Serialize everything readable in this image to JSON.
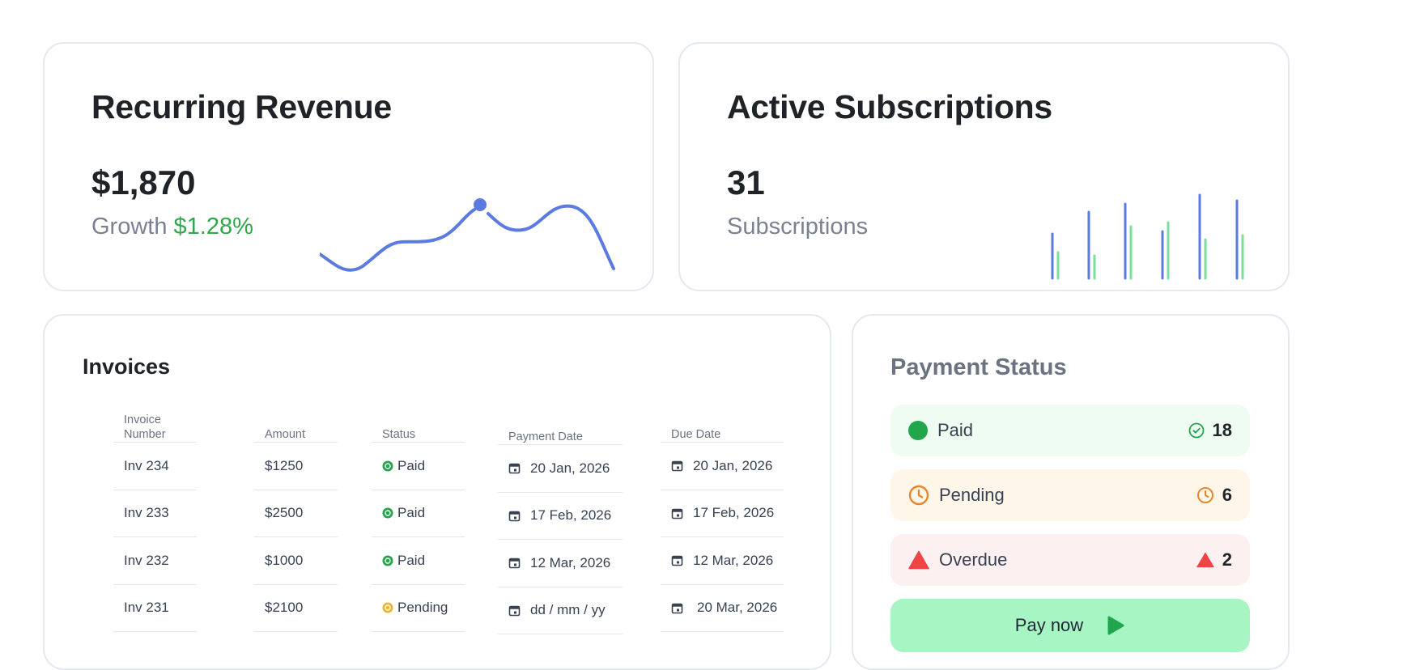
{
  "revenue": {
    "title": "Recurring Revenue",
    "value": "$1,870",
    "growth_label": "Growth",
    "growth_value": "$1.28%"
  },
  "subscriptions": {
    "title": "Active Subscriptions",
    "value": "31",
    "label": "Subscriptions"
  },
  "invoices": {
    "title": "Invoices",
    "headers": {
      "number": "Invoice Number",
      "amount": "Amount",
      "status": "Status",
      "payment_date": "Payment Date",
      "due_date": "Due Date"
    },
    "rows": [
      {
        "number": "Inv 234",
        "amount": "$1250",
        "status": "Paid",
        "payment_date": "20 Jan, 2026",
        "due_date": "20 Jan, 2026"
      },
      {
        "number": "Inv 233",
        "amount": "$2500",
        "status": "Paid",
        "payment_date": "17 Feb, 2026",
        "due_date": "17 Feb, 2026"
      },
      {
        "number": "Inv 232",
        "amount": "$1000",
        "status": "Paid",
        "payment_date": "12 Mar, 2026",
        "due_date": "12 Mar, 2026"
      },
      {
        "number": "Inv 231",
        "amount": "$2100",
        "status": "Pending",
        "payment_date": "dd / mm / yy",
        "due_date": "20 Mar, 2026"
      }
    ]
  },
  "payment_status": {
    "title": "Payment Status",
    "paid": {
      "label": "Paid",
      "count": "18"
    },
    "pending": {
      "label": "Pending",
      "count": "6"
    },
    "overdue": {
      "label": "Overdue",
      "count": "2"
    },
    "pay_button": "Pay now"
  },
  "colors": {
    "accent_blue": "#5b7be0",
    "accent_green": "#7adf9b",
    "paid": "#22a64c",
    "pending": "#e8862e",
    "overdue": "#ef4444",
    "pay_button_bg": "#a8f5c4"
  },
  "icons": {
    "paid_dot": "status-dot-icon",
    "paid_check": "check-circle-icon",
    "pending": "clock-icon",
    "overdue": "warning-triangle-icon",
    "pay_button": "play-icon",
    "date": "calendar-icon"
  }
}
